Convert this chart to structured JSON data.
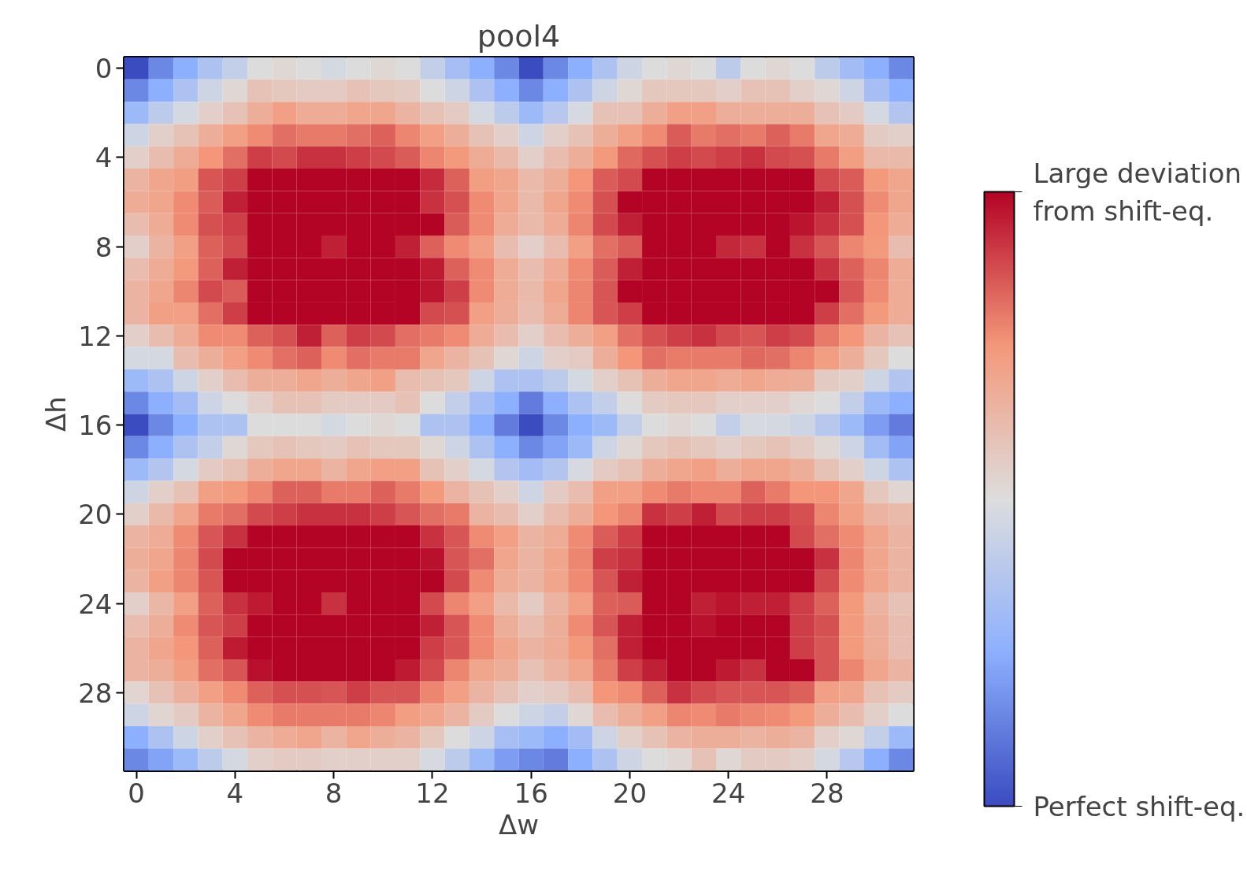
{
  "chart_data": {
    "type": "heatmap",
    "title": "pool4",
    "xlabel": "Δw",
    "ylabel": "Δh",
    "categories": [
      "0",
      null,
      null,
      null,
      "4",
      null,
      null,
      null,
      "8",
      null,
      null,
      null,
      "12",
      null,
      null,
      null,
      "16",
      null,
      null,
      null,
      "20",
      null,
      null,
      null,
      "24",
      null,
      null,
      null,
      "28",
      null,
      null,
      null
    ],
    "y_categories": [
      "0",
      null,
      null,
      null,
      "4",
      null,
      null,
      null,
      "8",
      null,
      null,
      null,
      "12",
      null,
      null,
      null,
      "16",
      null,
      null,
      null,
      "20",
      null,
      null,
      null,
      "24",
      null,
      null,
      null,
      "28",
      null,
      null,
      null
    ],
    "clim": [
      0,
      1
    ],
    "cticks": [
      {
        "value": 0,
        "label": "Perfect shift-eq."
      },
      {
        "value": 1,
        "label": "Large deviation\nfrom shift-eq."
      }
    ],
    "cells": [
      [
        0.0,
        0.15,
        0.25,
        0.35,
        0.42,
        0.5,
        0.52,
        0.5,
        0.47,
        0.5,
        0.52,
        0.5,
        0.42,
        0.33,
        0.25,
        0.15,
        0.0,
        0.15,
        0.25,
        0.35,
        0.45,
        0.5,
        0.52,
        0.5,
        0.4,
        0.5,
        0.52,
        0.5,
        0.4,
        0.32,
        0.25,
        0.15
      ],
      [
        0.15,
        0.25,
        0.35,
        0.45,
        0.52,
        0.6,
        0.58,
        0.57,
        0.57,
        0.6,
        0.58,
        0.57,
        0.5,
        0.45,
        0.35,
        0.25,
        0.15,
        0.25,
        0.35,
        0.45,
        0.52,
        0.58,
        0.58,
        0.58,
        0.55,
        0.6,
        0.6,
        0.55,
        0.52,
        0.45,
        0.33,
        0.25
      ],
      [
        0.3,
        0.4,
        0.47,
        0.55,
        0.6,
        0.67,
        0.72,
        0.68,
        0.68,
        0.7,
        0.7,
        0.65,
        0.6,
        0.57,
        0.47,
        0.4,
        0.3,
        0.38,
        0.48,
        0.6,
        0.6,
        0.67,
        0.72,
        0.72,
        0.67,
        0.67,
        0.67,
        0.67,
        0.6,
        0.57,
        0.47,
        0.37
      ],
      [
        0.45,
        0.55,
        0.6,
        0.67,
        0.72,
        0.77,
        0.82,
        0.8,
        0.8,
        0.82,
        0.84,
        0.78,
        0.72,
        0.67,
        0.6,
        0.55,
        0.45,
        0.55,
        0.6,
        0.67,
        0.72,
        0.77,
        0.85,
        0.8,
        0.82,
        0.8,
        0.84,
        0.8,
        0.7,
        0.68,
        0.57,
        0.55
      ],
      [
        0.55,
        0.62,
        0.68,
        0.75,
        0.82,
        0.9,
        0.88,
        0.92,
        0.92,
        0.9,
        0.88,
        0.85,
        0.78,
        0.74,
        0.68,
        0.63,
        0.55,
        0.62,
        0.67,
        0.74,
        0.83,
        0.87,
        0.9,
        0.88,
        0.9,
        0.92,
        0.88,
        0.87,
        0.8,
        0.73,
        0.63,
        0.63
      ],
      [
        0.65,
        0.7,
        0.73,
        0.86,
        0.9,
        1,
        1,
        1,
        1,
        1,
        1,
        1,
        0.93,
        0.84,
        0.73,
        0.7,
        0.63,
        0.67,
        0.75,
        0.85,
        0.88,
        1,
        1,
        1,
        1,
        1,
        1,
        1,
        0.88,
        0.85,
        0.74,
        0.7
      ],
      [
        0.68,
        0.7,
        0.77,
        0.85,
        0.95,
        1,
        1,
        1,
        1,
        1,
        1,
        1,
        0.92,
        0.87,
        0.77,
        0.7,
        0.63,
        0.7,
        0.77,
        0.87,
        1,
        1,
        1,
        1,
        1,
        1,
        1,
        1,
        0.95,
        0.87,
        0.77,
        0.7
      ],
      [
        0.62,
        0.68,
        0.77,
        0.87,
        0.9,
        1,
        1,
        1,
        1,
        1,
        1,
        1,
        1,
        0.85,
        0.77,
        0.68,
        0.63,
        0.68,
        0.78,
        0.88,
        0.95,
        1,
        1,
        1,
        1,
        1,
        1,
        0.97,
        0.92,
        0.87,
        0.75,
        0.68
      ],
      [
        0.55,
        0.65,
        0.72,
        0.84,
        0.88,
        1,
        1,
        1,
        0.95,
        1,
        1,
        0.95,
        0.84,
        0.77,
        0.72,
        0.62,
        0.55,
        0.62,
        0.72,
        0.82,
        0.85,
        1,
        1,
        1,
        0.94,
        0.92,
        1,
        0.92,
        0.86,
        0.78,
        0.74,
        0.62
      ],
      [
        0.62,
        0.68,
        0.74,
        0.84,
        0.95,
        1,
        1,
        1,
        1,
        1,
        1,
        1,
        0.96,
        0.84,
        0.77,
        0.68,
        0.62,
        0.68,
        0.77,
        0.85,
        0.95,
        1,
        1,
        1,
        1,
        1,
        1,
        1,
        0.92,
        0.84,
        0.78,
        0.68
      ],
      [
        0.65,
        0.7,
        0.78,
        0.88,
        0.85,
        1,
        1,
        1,
        1,
        1,
        1,
        1,
        0.97,
        0.9,
        0.77,
        0.68,
        0.63,
        0.7,
        0.78,
        0.86,
        1,
        1,
        1,
        1,
        1,
        1,
        1,
        1,
        1,
        0.86,
        0.77,
        0.68
      ],
      [
        0.65,
        0.72,
        0.72,
        0.82,
        0.9,
        1,
        1,
        1,
        1,
        1,
        1,
        1,
        0.88,
        0.87,
        0.72,
        0.67,
        0.62,
        0.68,
        0.78,
        0.86,
        0.9,
        1,
        1,
        1,
        1,
        1,
        1,
        1,
        0.9,
        0.82,
        0.74,
        0.68
      ],
      [
        0.55,
        0.62,
        0.68,
        0.77,
        0.77,
        0.84,
        0.87,
        0.95,
        0.84,
        0.9,
        0.88,
        0.82,
        0.8,
        0.77,
        0.68,
        0.62,
        0.55,
        0.62,
        0.67,
        0.72,
        0.82,
        0.87,
        0.9,
        0.92,
        0.88,
        0.86,
        0.9,
        0.88,
        0.8,
        0.75,
        0.65,
        0.6
      ],
      [
        0.47,
        0.47,
        0.62,
        0.67,
        0.72,
        0.77,
        0.82,
        0.84,
        0.77,
        0.82,
        0.8,
        0.8,
        0.7,
        0.65,
        0.6,
        0.52,
        0.45,
        0.55,
        0.57,
        0.67,
        0.75,
        0.82,
        0.8,
        0.8,
        0.8,
        0.83,
        0.82,
        0.78,
        0.73,
        0.67,
        0.58,
        0.5
      ],
      [
        0.3,
        0.35,
        0.45,
        0.55,
        0.62,
        0.67,
        0.67,
        0.7,
        0.67,
        0.7,
        0.72,
        0.62,
        0.6,
        0.58,
        0.45,
        0.35,
        0.35,
        0.4,
        0.47,
        0.55,
        0.6,
        0.67,
        0.7,
        0.7,
        0.68,
        0.7,
        0.68,
        0.67,
        0.57,
        0.55,
        0.45,
        0.37
      ],
      [
        0.15,
        0.25,
        0.32,
        0.45,
        0.5,
        0.55,
        0.6,
        0.6,
        0.57,
        0.57,
        0.57,
        0.6,
        0.5,
        0.42,
        0.33,
        0.25,
        0.12,
        0.25,
        0.35,
        0.42,
        0.5,
        0.57,
        0.58,
        0.58,
        0.55,
        0.55,
        0.55,
        0.52,
        0.5,
        0.42,
        0.3,
        0.25
      ],
      [
        0.0,
        0.15,
        0.25,
        0.35,
        0.35,
        0.5,
        0.5,
        0.5,
        0.47,
        0.5,
        0.52,
        0.5,
        0.35,
        0.35,
        0.25,
        0.12,
        0.0,
        0.15,
        0.25,
        0.3,
        0.42,
        0.5,
        0.52,
        0.5,
        0.42,
        0.48,
        0.47,
        0.45,
        0.38,
        0.3,
        0.2,
        0.12
      ],
      [
        0.15,
        0.25,
        0.35,
        0.42,
        0.52,
        0.58,
        0.6,
        0.58,
        0.57,
        0.6,
        0.58,
        0.58,
        0.52,
        0.45,
        0.35,
        0.25,
        0.15,
        0.22,
        0.3,
        0.45,
        0.52,
        0.58,
        0.6,
        0.58,
        0.55,
        0.58,
        0.6,
        0.57,
        0.52,
        0.45,
        0.32,
        0.22
      ],
      [
        0.3,
        0.37,
        0.47,
        0.57,
        0.6,
        0.67,
        0.7,
        0.7,
        0.65,
        0.7,
        0.72,
        0.72,
        0.6,
        0.55,
        0.47,
        0.37,
        0.32,
        0.37,
        0.48,
        0.57,
        0.6,
        0.67,
        0.7,
        0.72,
        0.67,
        0.7,
        0.7,
        0.67,
        0.6,
        0.55,
        0.45,
        0.35
      ],
      [
        0.45,
        0.55,
        0.6,
        0.72,
        0.74,
        0.78,
        0.84,
        0.84,
        0.8,
        0.8,
        0.84,
        0.8,
        0.74,
        0.65,
        0.6,
        0.55,
        0.45,
        0.57,
        0.62,
        0.72,
        0.72,
        0.77,
        0.8,
        0.78,
        0.78,
        0.84,
        0.8,
        0.75,
        0.75,
        0.7,
        0.58,
        0.53
      ],
      [
        0.55,
        0.63,
        0.7,
        0.8,
        0.82,
        0.88,
        0.9,
        0.92,
        0.92,
        0.92,
        0.9,
        0.86,
        0.82,
        0.8,
        0.65,
        0.62,
        0.55,
        0.62,
        0.67,
        0.75,
        0.78,
        0.92,
        0.9,
        0.95,
        0.88,
        0.9,
        0.9,
        0.87,
        0.78,
        0.72,
        0.65,
        0.63
      ],
      [
        0.65,
        0.68,
        0.77,
        0.86,
        0.92,
        1,
        1,
        1,
        1,
        1,
        1,
        1,
        0.92,
        0.86,
        0.77,
        0.72,
        0.65,
        0.68,
        0.77,
        0.85,
        0.9,
        1,
        1,
        1,
        1,
        1,
        1,
        0.88,
        0.82,
        0.77,
        0.7,
        0.65
      ],
      [
        0.67,
        0.7,
        0.78,
        0.88,
        1,
        1,
        1,
        1,
        1,
        1,
        1,
        1,
        0.98,
        0.86,
        0.82,
        0.7,
        0.65,
        0.7,
        0.78,
        0.9,
        0.92,
        1,
        1,
        1,
        1,
        1,
        1,
        1,
        0.92,
        0.78,
        0.7,
        0.65
      ],
      [
        0.65,
        0.72,
        0.78,
        0.86,
        1,
        1,
        1,
        1,
        1,
        1,
        1,
        1,
        1,
        0.88,
        0.77,
        0.68,
        0.65,
        0.7,
        0.77,
        0.86,
        0.95,
        1,
        1,
        1,
        1,
        1,
        1,
        1,
        0.88,
        0.77,
        0.7,
        0.65
      ],
      [
        0.55,
        0.64,
        0.72,
        0.84,
        0.92,
        0.96,
        1,
        1,
        0.92,
        1,
        1,
        1,
        0.88,
        0.78,
        0.72,
        0.63,
        0.57,
        0.65,
        0.72,
        0.84,
        0.85,
        1,
        1,
        0.95,
        0.97,
        0.95,
        0.95,
        0.9,
        0.84,
        0.74,
        0.65,
        0.6
      ],
      [
        0.62,
        0.67,
        0.77,
        0.86,
        0.9,
        1,
        1,
        1,
        1,
        1,
        1,
        1,
        0.95,
        0.86,
        0.77,
        0.67,
        0.62,
        0.67,
        0.77,
        0.86,
        0.95,
        1,
        1,
        0.98,
        1,
        1,
        1,
        0.9,
        0.87,
        0.74,
        0.67,
        0.62
      ],
      [
        0.65,
        0.7,
        0.75,
        0.84,
        0.96,
        1,
        1,
        1,
        1,
        1,
        1,
        1,
        0.9,
        0.86,
        0.77,
        0.7,
        0.65,
        0.68,
        0.74,
        0.82,
        0.95,
        1,
        1,
        1,
        1,
        1,
        1,
        0.9,
        0.86,
        0.74,
        0.68,
        0.62
      ],
      [
        0.65,
        0.67,
        0.73,
        0.82,
        0.86,
        0.98,
        1,
        1,
        1,
        1,
        1,
        0.96,
        0.88,
        0.78,
        0.7,
        0.67,
        0.6,
        0.65,
        0.7,
        0.8,
        0.9,
        0.95,
        1,
        1,
        0.96,
        0.92,
        1,
        1,
        0.86,
        0.78,
        0.7,
        0.65
      ],
      [
        0.53,
        0.6,
        0.66,
        0.72,
        0.77,
        0.84,
        0.87,
        0.87,
        0.86,
        0.9,
        0.86,
        0.86,
        0.78,
        0.72,
        0.65,
        0.6,
        0.55,
        0.57,
        0.62,
        0.75,
        0.77,
        0.84,
        0.92,
        0.88,
        0.86,
        0.86,
        0.86,
        0.84,
        0.72,
        0.7,
        0.6,
        0.57
      ],
      [
        0.45,
        0.53,
        0.57,
        0.65,
        0.7,
        0.77,
        0.8,
        0.8,
        0.8,
        0.8,
        0.78,
        0.73,
        0.7,
        0.65,
        0.57,
        0.5,
        0.45,
        0.42,
        0.52,
        0.62,
        0.67,
        0.72,
        0.78,
        0.77,
        0.8,
        0.78,
        0.77,
        0.74,
        0.67,
        0.62,
        0.55,
        0.5
      ],
      [
        0.25,
        0.35,
        0.45,
        0.55,
        0.6,
        0.65,
        0.68,
        0.7,
        0.65,
        0.7,
        0.67,
        0.65,
        0.58,
        0.5,
        0.45,
        0.33,
        0.3,
        0.25,
        0.32,
        0.45,
        0.55,
        0.6,
        0.65,
        0.67,
        0.67,
        0.65,
        0.67,
        0.65,
        0.55,
        0.52,
        0.42,
        0.3
      ],
      [
        0.15,
        0.22,
        0.3,
        0.4,
        0.47,
        0.55,
        0.57,
        0.57,
        0.55,
        0.55,
        0.55,
        0.55,
        0.48,
        0.4,
        0.3,
        0.2,
        0.15,
        0.12,
        0.25,
        0.35,
        0.45,
        0.5,
        0.52,
        0.6,
        0.52,
        0.57,
        0.57,
        0.55,
        0.47,
        0.38,
        0.25,
        0.15
      ]
    ]
  }
}
